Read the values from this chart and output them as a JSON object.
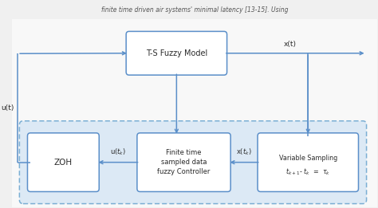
{
  "bg_color": "#f0f0f0",
  "diagram_bg": "#ffffff",
  "box_color": "#5b8fc9",
  "box_facecolor": "#ffffff",
  "dashed_box_color": "#7bafd4",
  "dashed_box_facecolor": "#dce9f5",
  "arrow_color": "#5b8fc9",
  "text_color": "#2a2a2a",
  "title_text": "T-S Fuzzy Model",
  "zoh_text": "ZOH",
  "controller_text": "Finite time\nsampled data\nfuzzy Controller",
  "sampling_line1": "Variable Sampling",
  "sampling_line2": "$t_{k+1}$- $t_k$  =  $\\tau_k$",
  "label_ut": "u(t)",
  "label_xt": "x(t)",
  "label_utk": "u($t_k$)",
  "label_xtk": "x($t_k$)",
  "header_text": "finite time driven air systems' minimal latency [13-15]. Using"
}
